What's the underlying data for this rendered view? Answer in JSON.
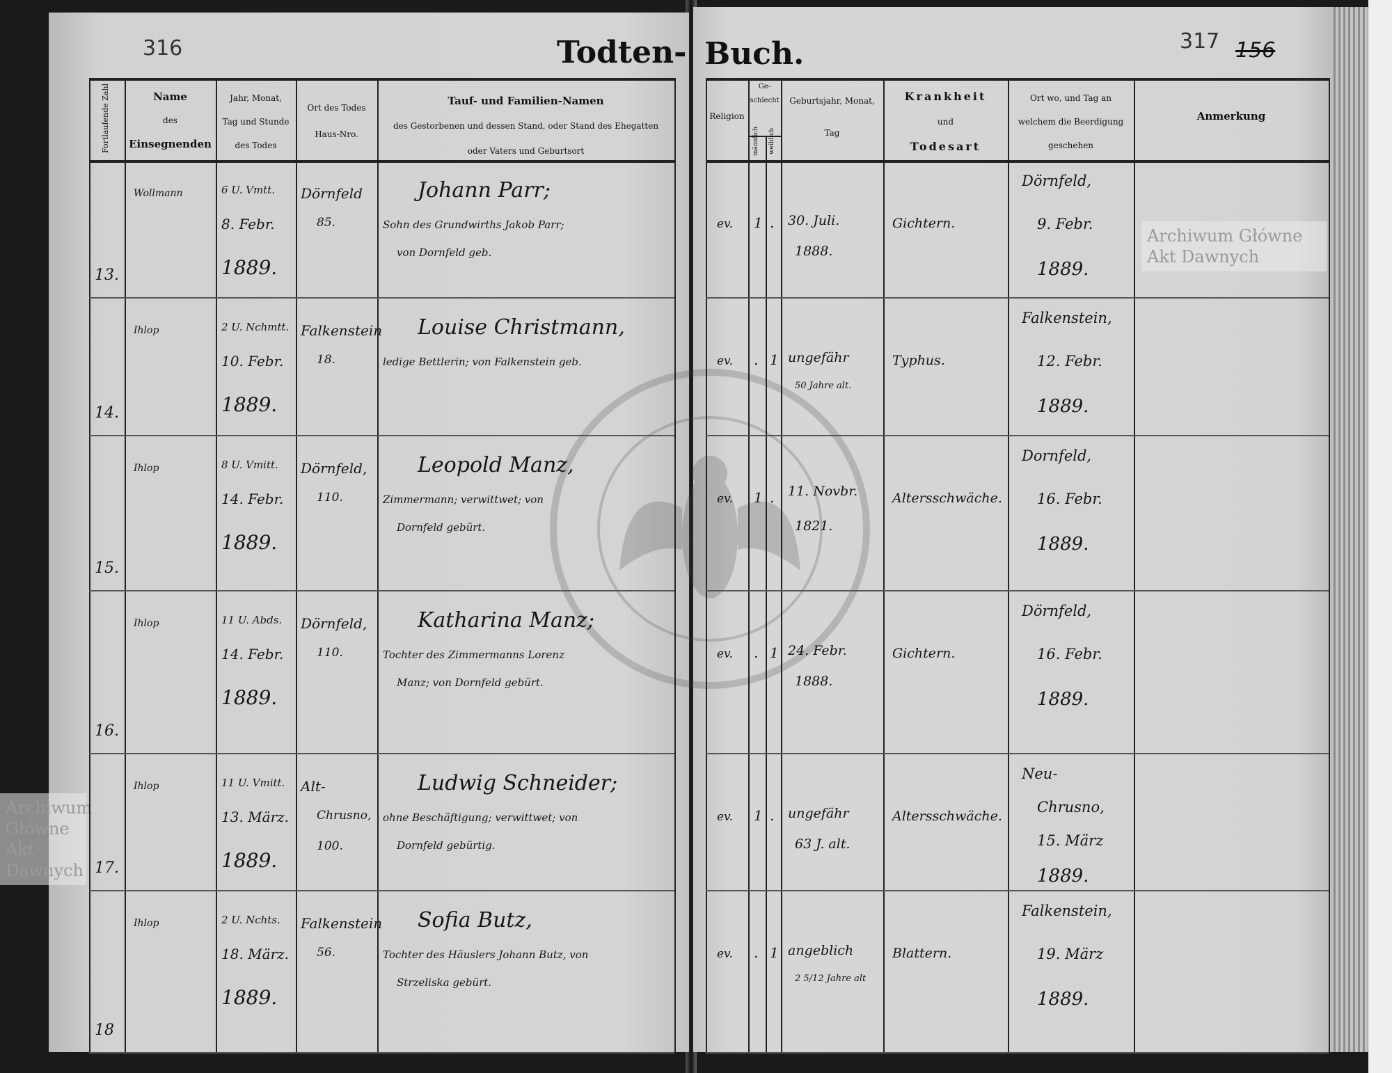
{
  "header": {
    "left_page_number": "316",
    "right_page_number": "317",
    "folio_number": "156",
    "title_left": "Todten-",
    "title_right": "Buch."
  },
  "columns_left": {
    "serial": "Fortlaufende Zahl",
    "officiant": [
      "Name",
      "des",
      "Einsegnenden"
    ],
    "death_time": [
      "Jahr, Monat,",
      "Tag und Stunde",
      "des Todes"
    ],
    "death_place": [
      "Ort des Todes",
      "Haus-Nro."
    ],
    "names": [
      "Tauf- und Familien-Namen",
      "des Gestorbenen und dessen Stand, oder Stand des Ehegatten",
      "oder Vaters und Geburtsort"
    ]
  },
  "columns_right": {
    "religion": "Religion",
    "sex": "Ge-schlecht",
    "male": "männlich",
    "female": "weiblich",
    "birth": [
      "Geburtsjahr, Monat,",
      "Tag"
    ],
    "cause": [
      "Krankheit",
      "und",
      "Todesart"
    ],
    "burial": [
      "Ort wo, und Tag an",
      "welchem die Beerdigung",
      "geschehen"
    ],
    "remarks": "Anmerkung"
  },
  "entries": [
    {
      "no": "13.",
      "officiant": "Wollmann",
      "death": [
        "6 U. Vmtt.",
        "8. Febr.",
        "1889."
      ],
      "place": [
        "Dörnfeld",
        "85."
      ],
      "name": "Johann Parr;",
      "desc": [
        "Sohn des Grundwirths Jakob Parr;",
        "von Dornfeld geb."
      ],
      "religion": "ev.",
      "male": "1",
      "female": ".",
      "birth": [
        "30. Juli.",
        "1888."
      ],
      "cause": "Gichtern.",
      "burial": [
        "Dörnfeld,",
        "9. Febr.",
        "1889."
      ]
    },
    {
      "no": "14.",
      "officiant": "Ihlop",
      "death": [
        "2 U. Nchmtt.",
        "10. Febr.",
        "1889."
      ],
      "place": [
        "Falkenstein",
        "18."
      ],
      "name": "Louise Christmann,",
      "desc": [
        "ledige Bettlerin; von Falkenstein geb."
      ],
      "religion": "ev.",
      "male": ".",
      "female": "1",
      "birth": [
        "ungefähr",
        "50 Jahre alt."
      ],
      "cause": "Typhus.",
      "burial": [
        "Falkenstein,",
        "12. Febr.",
        "1889."
      ]
    },
    {
      "no": "15.",
      "officiant": "Ihlop",
      "death": [
        "8 U. Vmitt.",
        "14. Febr.",
        "1889."
      ],
      "place": [
        "Dörnfeld,",
        "110."
      ],
      "name": "Leopold Manz,",
      "desc": [
        "Zimmermann; verwittwet; von",
        "Dornfeld gebürt."
      ],
      "religion": "ev.",
      "male": "1",
      "female": ".",
      "birth": [
        "11. Novbr.",
        "1821."
      ],
      "cause": "Altersschwäche.",
      "burial": [
        "Dornfeld,",
        "16. Febr.",
        "1889."
      ]
    },
    {
      "no": "16.",
      "officiant": "Ihlop",
      "death": [
        "11 U. Abds.",
        "14. Febr.",
        "1889."
      ],
      "place": [
        "Dörnfeld,",
        "110."
      ],
      "name": "Katharina Manz;",
      "desc": [
        "Tochter des Zimmermanns Lorenz",
        "Manz; von Dornfeld gebürt."
      ],
      "religion": "ev.",
      "male": ".",
      "female": "1",
      "birth": [
        "24. Febr.",
        "1888."
      ],
      "cause": "Gichtern.",
      "burial": [
        "Dörnfeld,",
        "16. Febr.",
        "1889."
      ]
    },
    {
      "no": "17.",
      "officiant": "Ihlop",
      "death": [
        "11 U. Vmitt.",
        "13. März.",
        "1889."
      ],
      "place": [
        "Alt-",
        "Chrusno,",
        "100."
      ],
      "name": "Ludwig Schneider;",
      "desc": [
        "ohne Beschäftigung; verwittwet; von",
        "Dornfeld gebürtig."
      ],
      "religion": "ev.",
      "male": "1",
      "female": ".",
      "birth": [
        "ungefähr",
        "63 J. alt."
      ],
      "cause": "Altersschwäche.",
      "burial": [
        "Neu-",
        "Chrusno,",
        "15. März",
        "1889."
      ]
    },
    {
      "no": "18",
      "officiant": "Ihlop",
      "death": [
        "2 U. Nchts.",
        "18. März.",
        "1889."
      ],
      "place": [
        "Falkenstein",
        "56."
      ],
      "name": "Sofia Butz,",
      "desc": [
        "Tochter des Häuslers Johann Butz, von",
        "Strzeliska gebürt."
      ],
      "religion": "ev.",
      "male": ".",
      "female": "1",
      "birth": [
        "angeblich",
        "2 5/12 Jahre alt"
      ],
      "cause": "Blattern.",
      "burial": [
        "Falkenstein,",
        "19. März",
        "1889."
      ]
    }
  ],
  "watermark": {
    "text": "Archiwum Główne Akt Dawnych",
    "seal_text": "ARCHIWUM GŁÓWNE AKT DAWNYCH"
  }
}
